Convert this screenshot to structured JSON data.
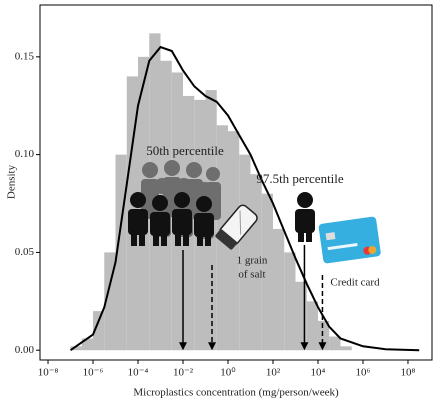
{
  "chart_data": {
    "type": "histogram",
    "x_label": "Microplastics concentration (mg/person/week)",
    "y_label": "Density",
    "xscale": "log",
    "xlim": [
      4.4e-09,
      1170000000.0
    ],
    "ylim": [
      -0.005,
      0.1765
    ],
    "xticks": [
      {
        "value": 1e-08,
        "label": "10⁻⁸"
      },
      {
        "value": 1e-06,
        "label": "10⁻⁶"
      },
      {
        "value": 0.0001,
        "label": "10⁻⁴"
      },
      {
        "value": 0.01,
        "label": "10⁻²"
      },
      {
        "value": 1,
        "label": "10⁰"
      },
      {
        "value": 100,
        "label": "10²"
      },
      {
        "value": 10000,
        "label": "10⁴"
      },
      {
        "value": 1000000,
        "label": "10⁶"
      },
      {
        "value": 100000000,
        "label": "10⁸"
      }
    ],
    "yticks": [
      {
        "value": 0,
        "label": "0.00"
      },
      {
        "value": 0.05,
        "label": "0.05"
      },
      {
        "value": 0.1,
        "label": "0.10"
      },
      {
        "value": 0.15,
        "label": "0.15"
      }
    ],
    "bins": [
      1e-07,
      3.162e-07,
      1e-06,
      3.162e-06,
      1e-05,
      3.162e-05,
      0.0001,
      0.0003162,
      0.001,
      0.003162,
      0.01,
      0.03162,
      0.1,
      0.3162,
      1,
      3.162,
      10,
      31.62,
      100,
      316.2,
      1000,
      3162,
      10000,
      31620,
      100000,
      316200
    ],
    "counts": [
      0.002,
      0.006,
      0.02,
      0.05,
      0.1,
      0.14,
      0.15,
      0.162,
      0.148,
      0.142,
      0.13,
      0.128,
      0.133,
      0.115,
      0.112,
      0.1,
      0.09,
      0.08,
      0.062,
      0.05,
      0.035,
      0.025,
      0.015,
      0.007,
      0.002
    ],
    "bar_color": "#bdbdbd",
    "density": {
      "color": "#000000",
      "x": [
        1e-07,
        1e-06,
        3.162e-06,
        1e-05,
        3.162e-05,
        0.0001,
        0.0003162,
        0.001,
        0.003162,
        0.01,
        0.03162,
        0.1,
        0.3162,
        1,
        3.162,
        10,
        31.62,
        100,
        316.2,
        1000,
        3162,
        10000,
        31620,
        100000,
        1000000,
        10000000,
        316200000
      ],
      "values": [
        0,
        0.008,
        0.022,
        0.045,
        0.085,
        0.125,
        0.148,
        0.155,
        0.153,
        0.143,
        0.135,
        0.13,
        0.127,
        0.12,
        0.11,
        0.1,
        0.087,
        0.075,
        0.061,
        0.047,
        0.034,
        0.022,
        0.012,
        0.006,
        0.002,
        0.0005,
        0
      ]
    },
    "annotations": [
      {
        "text": [
          "50th percentile"
        ],
        "x": 0.01,
        "style": "solid"
      },
      {
        "text": [
          "1 grain",
          "of salt"
        ],
        "x": 0.195,
        "style": "dashed"
      },
      {
        "text": [
          "97.5th percentile"
        ],
        "x": 2500,
        "style": "solid"
      },
      {
        "text": [
          "Credit card"
        ],
        "x": 15800,
        "style": "dashed"
      }
    ]
  }
}
